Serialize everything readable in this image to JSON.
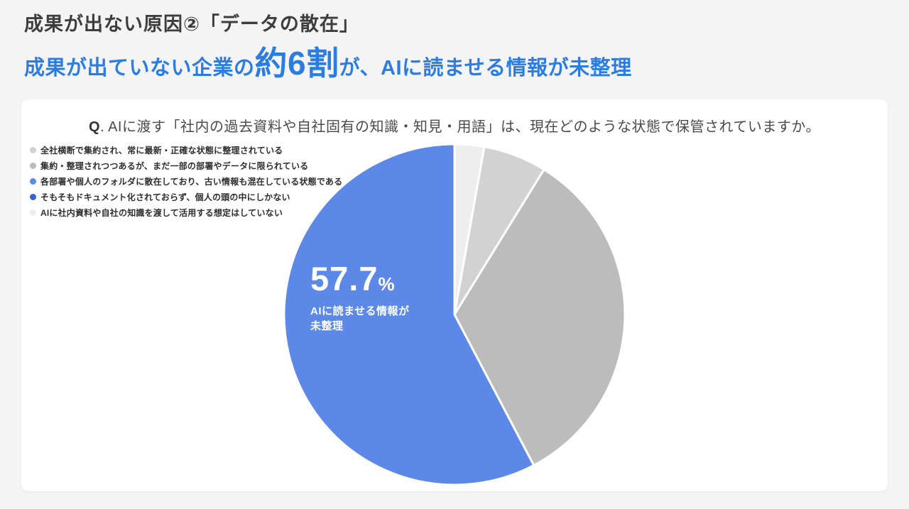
{
  "page": {
    "background": "#f4f4f4",
    "title": "成果が出ない原因②「データの散在」",
    "headline": {
      "prefix": "成果が出ていない企業の",
      "emphasis": "約6割",
      "suffix": "が、AIに読ませる情報が未整理",
      "color": "#2b7de2"
    }
  },
  "card": {
    "question": {
      "q": "Q",
      "text": ". AIに渡す「社内の過去資料や自社固有の知識・知見・用語」は、現在どのような状態で保管されていますか。"
    }
  },
  "legend": {
    "items": [
      {
        "label": "全社横断で集約され、常に最新・正確な状態に整理されている",
        "color": "#d2d2d2"
      },
      {
        "label": "集約・整理されつつあるが、まだ一部の部署やデータに限られている",
        "color": "#bcbcbc"
      },
      {
        "label": "各部署や個人のフォルダに散在しており、古い情報も混在している状態である",
        "color": "#5c88e8"
      },
      {
        "label": "そもそもドキュメント化されておらず、個人の頭の中にしかない",
        "color": "#3464c8"
      },
      {
        "label": "AIに社内資料や自社の知識を渡して活用する想定はしていない",
        "color": "#eeeeee"
      }
    ]
  },
  "chart_data": {
    "type": "pie",
    "title": "Q. AIに渡す「社内の過去資料や自社固有の知識・知見・用語」は、現在どのような状態で保管されていますか。",
    "legend_position": "top-left",
    "start_angle_deg": 0,
    "clockwise": true,
    "annotation": {
      "value": "57.7",
      "unit": "%",
      "label_lines": [
        "AIに読ませる情報が",
        "未整理"
      ]
    },
    "slices": [
      {
        "label": "AIに社内資料や自社の知識を渡して活用する想定はしていない",
        "value": 2.8,
        "color": "#eeeeee"
      },
      {
        "label": "全社横断で集約され、常に最新・正確な状態に整理されている",
        "value": 6.0,
        "color": "#d2d2d2"
      },
      {
        "label": "集約・整理されつつあるが、まだ一部の部署やデータに限られている",
        "value": 33.5,
        "color": "#bcbcbc"
      },
      {
        "label": "AIに読ませる情報が未整理（各部署や個人のフォルダに散在／そもそもドキュメント化されていない）",
        "value": 57.7,
        "color": "#5c88e8"
      }
    ]
  }
}
